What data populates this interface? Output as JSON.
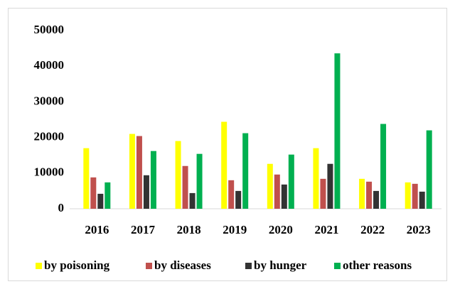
{
  "chart_data": {
    "type": "bar",
    "categories": [
      "2016",
      "2017",
      "2018",
      "2019",
      "2020",
      "2021",
      "2022",
      "2023"
    ],
    "series": [
      {
        "name": "by poisoning",
        "color": "#ffff00",
        "values": [
          17000,
          21000,
          19000,
          24400,
          12600,
          17000,
          8400,
          7400
        ]
      },
      {
        "name": "by diseases",
        "color": "#c0504d",
        "values": [
          8800,
          20400,
          12000,
          8000,
          9600,
          8400,
          7600,
          7000
        ]
      },
      {
        "name": "by hunger",
        "color": "#333333",
        "values": [
          4200,
          9400,
          4400,
          5000,
          6800,
          12600,
          5000,
          4800
        ]
      },
      {
        "name": "other reasons",
        "color": "#00b050",
        "values": [
          7400,
          16200,
          15400,
          21200,
          15200,
          43600,
          23800,
          22000
        ]
      }
    ],
    "ylim": [
      0,
      50000
    ],
    "yticks": [
      0,
      10000,
      20000,
      30000,
      40000,
      50000
    ],
    "grid": false,
    "legend": "bottom"
  }
}
